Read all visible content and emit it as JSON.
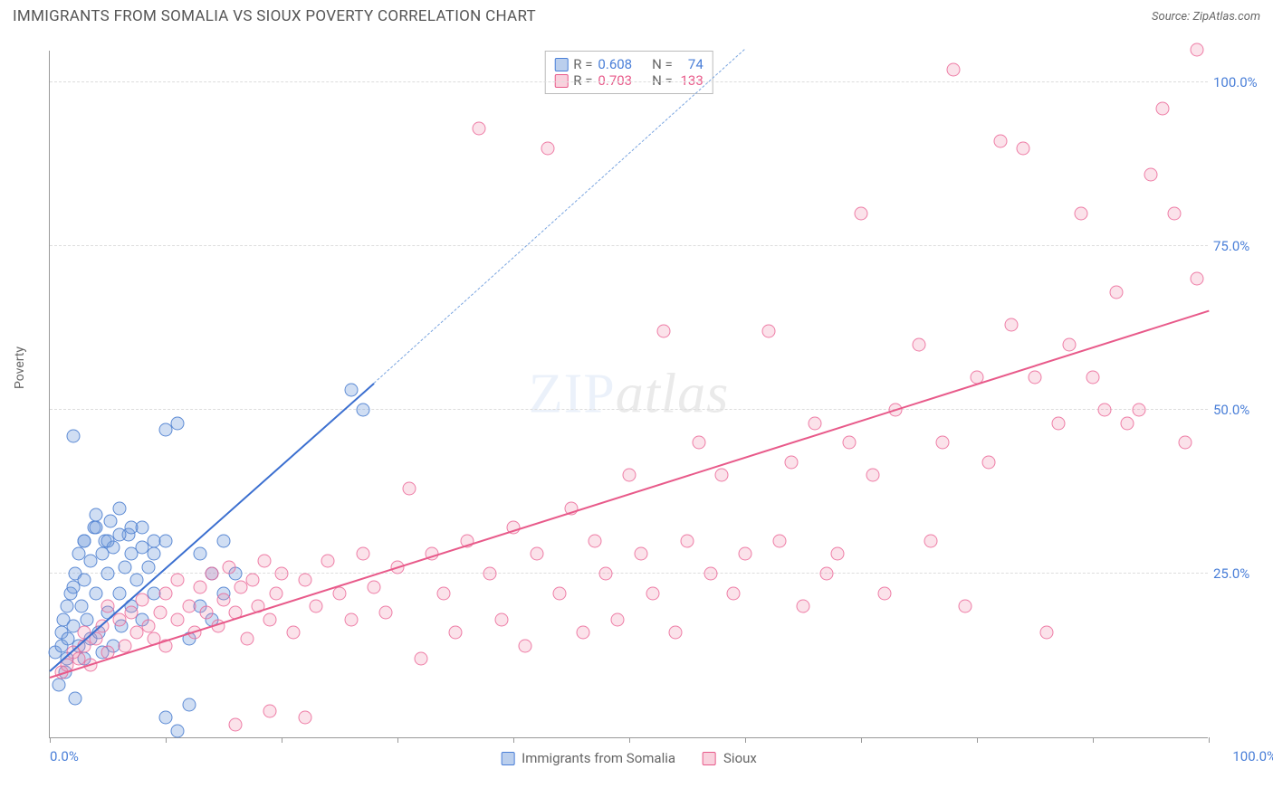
{
  "title": "IMMIGRANTS FROM SOMALIA VS SIOUX POVERTY CORRELATION CHART",
  "source_label": "Source:",
  "source_value": "ZipAtlas.com",
  "ylabel": "Poverty",
  "watermark_a": "ZIP",
  "watermark_b": "atlas",
  "chart": {
    "type": "scatter",
    "xlim": [
      0,
      100
    ],
    "ylim": [
      0,
      105
    ],
    "ytick_labels": [
      "25.0%",
      "50.0%",
      "75.0%",
      "100.0%"
    ],
    "ytick_vals": [
      25,
      50,
      75,
      100
    ],
    "xtick_vals": [
      0,
      10,
      20,
      30,
      40,
      50,
      60,
      70,
      80,
      90,
      100
    ],
    "x_start_label": "0.0%",
    "x_end_label": "100.0%",
    "grid_color": "#dddddd",
    "axis_color": "#999999",
    "background_color": "#ffffff",
    "series": [
      {
        "name": "Immigrants from Somalia",
        "label": "Immigrants from Somalia",
        "color_fill": "rgba(120,160,220,0.35)",
        "color_stroke": "#4a7fd8",
        "R": "0.608",
        "N": "74",
        "trend": {
          "x1": 0,
          "y1": 10,
          "x2": 28,
          "y2": 54,
          "dash_continue_to": [
            60,
            105
          ]
        },
        "points": [
          [
            0.5,
            13
          ],
          [
            0.8,
            8
          ],
          [
            1,
            14
          ],
          [
            1,
            16
          ],
          [
            1.2,
            18
          ],
          [
            1.3,
            10
          ],
          [
            1.5,
            20
          ],
          [
            1.5,
            12
          ],
          [
            1.6,
            15
          ],
          [
            1.8,
            22
          ],
          [
            2,
            17
          ],
          [
            2,
            23
          ],
          [
            2.2,
            6
          ],
          [
            2.2,
            25
          ],
          [
            2.5,
            28
          ],
          [
            2.5,
            14
          ],
          [
            2.7,
            20
          ],
          [
            3,
            12
          ],
          [
            3,
            24
          ],
          [
            3,
            30
          ],
          [
            3.2,
            18
          ],
          [
            3.5,
            15
          ],
          [
            3.5,
            27
          ],
          [
            3.8,
            32
          ],
          [
            4,
            22
          ],
          [
            4,
            34
          ],
          [
            4.2,
            16
          ],
          [
            4.5,
            28
          ],
          [
            4.5,
            13
          ],
          [
            4.8,
            30
          ],
          [
            5,
            19
          ],
          [
            5,
            25
          ],
          [
            5.2,
            33
          ],
          [
            5.5,
            14
          ],
          [
            5.5,
            29
          ],
          [
            6,
            22
          ],
          [
            6,
            35
          ],
          [
            6.2,
            17
          ],
          [
            6.5,
            26
          ],
          [
            6.8,
            31
          ],
          [
            7,
            20
          ],
          [
            7,
            28
          ],
          [
            7.5,
            24
          ],
          [
            8,
            32
          ],
          [
            8,
            18
          ],
          [
            8.5,
            26
          ],
          [
            9,
            30
          ],
          [
            9,
            22
          ],
          [
            10,
            47
          ],
          [
            11,
            48
          ],
          [
            12,
            5
          ],
          [
            13,
            28
          ],
          [
            14,
            25
          ],
          [
            15,
            30
          ],
          [
            2,
            46
          ],
          [
            3,
            30
          ],
          [
            4,
            32
          ],
          [
            5,
            30
          ],
          [
            6,
            31
          ],
          [
            7,
            32
          ],
          [
            8,
            29
          ],
          [
            9,
            28
          ],
          [
            10,
            30
          ],
          [
            12,
            15
          ],
          [
            13,
            20
          ],
          [
            14,
            18
          ],
          [
            15,
            22
          ],
          [
            16,
            25
          ],
          [
            26,
            53
          ],
          [
            27,
            50
          ],
          [
            10,
            3
          ],
          [
            11,
            1
          ]
        ]
      },
      {
        "name": "Sioux",
        "label": "Sioux",
        "color_fill": "rgba(240,140,170,0.25)",
        "color_stroke": "#e85a8a",
        "R": "0.703",
        "N": "133",
        "trend": {
          "x1": 0,
          "y1": 9,
          "x2": 100,
          "y2": 65
        },
        "points": [
          [
            1,
            10
          ],
          [
            1.5,
            11
          ],
          [
            2,
            13
          ],
          [
            2.5,
            12
          ],
          [
            3,
            14
          ],
          [
            3,
            16
          ],
          [
            3.5,
            11
          ],
          [
            4,
            15
          ],
          [
            4.5,
            17
          ],
          [
            5,
            13
          ],
          [
            5,
            20
          ],
          [
            6,
            18
          ],
          [
            6.5,
            14
          ],
          [
            7,
            19
          ],
          [
            7.5,
            16
          ],
          [
            8,
            21
          ],
          [
            8.5,
            17
          ],
          [
            9,
            15
          ],
          [
            9.5,
            19
          ],
          [
            10,
            22
          ],
          [
            10,
            14
          ],
          [
            11,
            18
          ],
          [
            11,
            24
          ],
          [
            12,
            20
          ],
          [
            12.5,
            16
          ],
          [
            13,
            23
          ],
          [
            13.5,
            19
          ],
          [
            14,
            25
          ],
          [
            14.5,
            17
          ],
          [
            15,
            21
          ],
          [
            15.5,
            26
          ],
          [
            16,
            19
          ],
          [
            16.5,
            23
          ],
          [
            17,
            15
          ],
          [
            17.5,
            24
          ],
          [
            18,
            20
          ],
          [
            18.5,
            27
          ],
          [
            19,
            18
          ],
          [
            19.5,
            22
          ],
          [
            20,
            25
          ],
          [
            21,
            16
          ],
          [
            22,
            24
          ],
          [
            23,
            20
          ],
          [
            24,
            27
          ],
          [
            25,
            22
          ],
          [
            26,
            18
          ],
          [
            27,
            28
          ],
          [
            28,
            23
          ],
          [
            29,
            19
          ],
          [
            30,
            26
          ],
          [
            31,
            38
          ],
          [
            32,
            12
          ],
          [
            33,
            28
          ],
          [
            34,
            22
          ],
          [
            35,
            16
          ],
          [
            36,
            30
          ],
          [
            37,
            93
          ],
          [
            38,
            25
          ],
          [
            39,
            18
          ],
          [
            40,
            32
          ],
          [
            41,
            14
          ],
          [
            42,
            28
          ],
          [
            43,
            90
          ],
          [
            44,
            22
          ],
          [
            45,
            35
          ],
          [
            46,
            16
          ],
          [
            47,
            30
          ],
          [
            48,
            25
          ],
          [
            49,
            18
          ],
          [
            50,
            40
          ],
          [
            51,
            28
          ],
          [
            52,
            22
          ],
          [
            53,
            62
          ],
          [
            54,
            16
          ],
          [
            55,
            30
          ],
          [
            56,
            45
          ],
          [
            57,
            25
          ],
          [
            58,
            40
          ],
          [
            59,
            22
          ],
          [
            60,
            28
          ],
          [
            62,
            62
          ],
          [
            63,
            30
          ],
          [
            64,
            42
          ],
          [
            65,
            20
          ],
          [
            66,
            48
          ],
          [
            67,
            25
          ],
          [
            68,
            28
          ],
          [
            69,
            45
          ],
          [
            70,
            80
          ],
          [
            71,
            40
          ],
          [
            72,
            22
          ],
          [
            73,
            50
          ],
          [
            75,
            60
          ],
          [
            76,
            30
          ],
          [
            77,
            45
          ],
          [
            78,
            102
          ],
          [
            79,
            20
          ],
          [
            80,
            55
          ],
          [
            81,
            42
          ],
          [
            82,
            91
          ],
          [
            83,
            63
          ],
          [
            84,
            90
          ],
          [
            85,
            55
          ],
          [
            86,
            16
          ],
          [
            87,
            48
          ],
          [
            88,
            60
          ],
          [
            89,
            80
          ],
          [
            90,
            55
          ],
          [
            91,
            50
          ],
          [
            92,
            68
          ],
          [
            93,
            48
          ],
          [
            94,
            50
          ],
          [
            95,
            86
          ],
          [
            96,
            96
          ],
          [
            97,
            80
          ],
          [
            98,
            45
          ],
          [
            99,
            70
          ],
          [
            99,
            105
          ],
          [
            16,
            2
          ],
          [
            19,
            4
          ],
          [
            22,
            3
          ]
        ]
      }
    ],
    "bottom_legend": [
      {
        "swatch": "blue",
        "label": "Immigrants from Somalia"
      },
      {
        "swatch": "pink",
        "label": "Sioux"
      }
    ],
    "top_legend": [
      {
        "swatch": "blue",
        "r_label": "R =",
        "r_val": "0.608",
        "n_label": "N =",
        "n_val": "74",
        "color_class": "val"
      },
      {
        "swatch": "pink",
        "r_label": "R =",
        "r_val": "0.703",
        "n_label": "N =",
        "n_val": "133",
        "color_class": "val pink"
      }
    ]
  }
}
